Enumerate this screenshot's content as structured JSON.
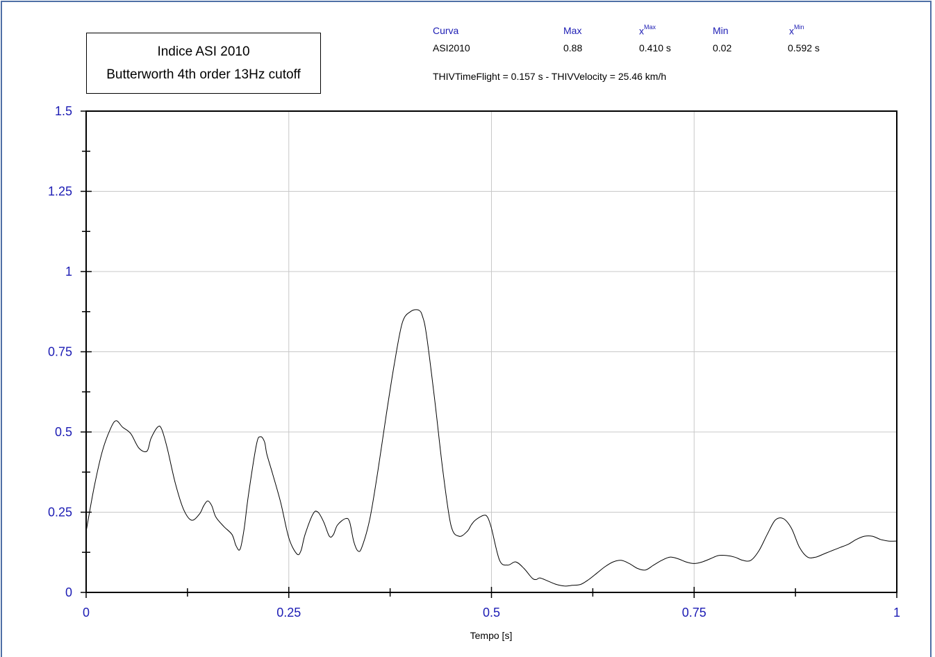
{
  "stats": {
    "headers": {
      "curve": "Curva",
      "max": "Max",
      "x_max_base": "x",
      "x_max_sup": "Max",
      "min": "Min",
      "x_min_base": "x",
      "x_min_sup": "Min"
    },
    "row": {
      "curve": "ASI2010",
      "max": "0.88",
      "x_max": "0.410 s",
      "min": "0.02",
      "x_min": "0.592 s"
    },
    "thiv": "THIVTimeFlight = 0.157 s - THIVVelocity = 25.46 km/h"
  },
  "colors": {
    "frame": "#4f6fa5",
    "labels": "#1c1cb4",
    "line": "#000000",
    "grid": "#c8c8c8"
  },
  "chart_data": {
    "type": "line",
    "title": "Indice ASI 2010",
    "subtitle": "Butterworth 4th order 13Hz cutoff",
    "xlabel": "Tempo [s]",
    "ylabel": "",
    "xlim": [
      0,
      1
    ],
    "ylim": [
      0,
      1.5
    ],
    "x_ticks": [
      "0",
      "0.25",
      "0.5",
      "0.75",
      "1"
    ],
    "x_tick_values": [
      0,
      0.25,
      0.5,
      0.75,
      1
    ],
    "y_ticks": [
      "0",
      "0.25",
      "0.5",
      "0.75",
      "1",
      "1.25",
      "1.5"
    ],
    "y_tick_values": [
      0,
      0.25,
      0.5,
      0.75,
      1,
      1.25,
      1.5
    ],
    "grid": true,
    "series": [
      {
        "name": "ASI2010",
        "x": [
          0,
          0.01,
          0.02,
          0.03,
          0.037,
          0.045,
          0.055,
          0.065,
          0.075,
          0.08,
          0.088,
          0.093,
          0.1,
          0.11,
          0.12,
          0.13,
          0.14,
          0.145,
          0.15,
          0.155,
          0.16,
          0.17,
          0.18,
          0.185,
          0.19,
          0.195,
          0.2,
          0.21,
          0.215,
          0.22,
          0.223,
          0.23,
          0.24,
          0.25,
          0.26,
          0.265,
          0.27,
          0.28,
          0.286,
          0.293,
          0.3,
          0.305,
          0.31,
          0.32,
          0.325,
          0.33,
          0.335,
          0.34,
          0.35,
          0.36,
          0.37,
          0.38,
          0.39,
          0.4,
          0.41,
          0.415,
          0.42,
          0.43,
          0.44,
          0.45,
          0.46,
          0.47,
          0.475,
          0.48,
          0.49,
          0.495,
          0.5,
          0.51,
          0.52,
          0.53,
          0.54,
          0.55,
          0.555,
          0.56,
          0.57,
          0.58,
          0.59,
          0.6,
          0.61,
          0.62,
          0.63,
          0.64,
          0.65,
          0.66,
          0.67,
          0.68,
          0.69,
          0.7,
          0.71,
          0.72,
          0.73,
          0.74,
          0.75,
          0.76,
          0.77,
          0.78,
          0.79,
          0.8,
          0.81,
          0.82,
          0.83,
          0.84,
          0.85,
          0.86,
          0.87,
          0.88,
          0.89,
          0.9,
          0.91,
          0.92,
          0.93,
          0.94,
          0.95,
          0.96,
          0.97,
          0.98,
          0.99,
          1
        ],
        "y": [
          0.19,
          0.33,
          0.44,
          0.51,
          0.535,
          0.515,
          0.495,
          0.45,
          0.44,
          0.48,
          0.515,
          0.51,
          0.45,
          0.34,
          0.26,
          0.225,
          0.245,
          0.27,
          0.285,
          0.27,
          0.235,
          0.205,
          0.18,
          0.145,
          0.135,
          0.2,
          0.3,
          0.46,
          0.485,
          0.47,
          0.43,
          0.37,
          0.28,
          0.17,
          0.12,
          0.13,
          0.18,
          0.245,
          0.25,
          0.22,
          0.175,
          0.18,
          0.21,
          0.23,
          0.22,
          0.16,
          0.13,
          0.14,
          0.23,
          0.38,
          0.55,
          0.71,
          0.84,
          0.875,
          0.88,
          0.86,
          0.8,
          0.6,
          0.38,
          0.21,
          0.175,
          0.19,
          0.21,
          0.225,
          0.24,
          0.235,
          0.2,
          0.1,
          0.085,
          0.095,
          0.075,
          0.045,
          0.04,
          0.045,
          0.035,
          0.025,
          0.02,
          0.022,
          0.025,
          0.04,
          0.06,
          0.08,
          0.095,
          0.1,
          0.09,
          0.075,
          0.07,
          0.085,
          0.1,
          0.11,
          0.105,
          0.095,
          0.09,
          0.095,
          0.105,
          0.115,
          0.115,
          0.11,
          0.1,
          0.1,
          0.13,
          0.18,
          0.225,
          0.23,
          0.2,
          0.14,
          0.11,
          0.11,
          0.12,
          0.13,
          0.14,
          0.15,
          0.165,
          0.175,
          0.175,
          0.165,
          0.16,
          0.16
        ]
      }
    ]
  }
}
